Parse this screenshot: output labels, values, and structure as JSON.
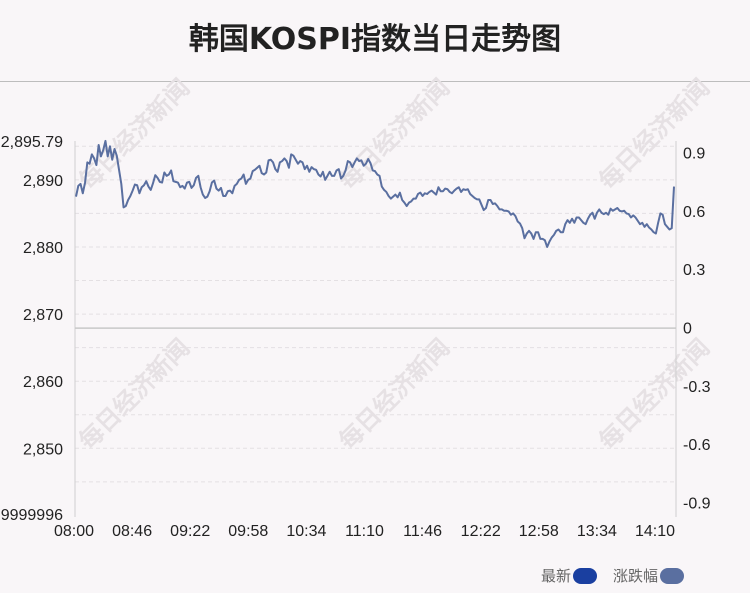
{
  "title": "韩国KOSPI指数当日走势图",
  "watermark": "每日经济新闻",
  "legend": {
    "items": [
      "最新",
      "涨跌幅"
    ],
    "colors": [
      "#1a3fa0",
      "#5a6fa0"
    ]
  },
  "chart_data": {
    "type": "line",
    "title": "韩国KOSPI指数当日走势图",
    "series": [
      {
        "name": "最新",
        "color": "#5a6fa0",
        "values": [
          2887.5,
          2889.1,
          2889.4,
          2888.0,
          2889.6,
          2892.6,
          2892.4,
          2893.8,
          2893.2,
          2892.2,
          2895.2,
          2893.5,
          2894.4,
          2895.8,
          2893.5,
          2895.0,
          2893.0,
          2894.6,
          2893.6,
          2891.5,
          2889.4,
          2885.9,
          2886.1,
          2887.0,
          2887.6,
          2888.4,
          2889.3,
          2889.2,
          2888.0,
          2888.9,
          2889.2,
          2889.8,
          2889.0,
          2888.5,
          2889.5,
          2890.7,
          2890.3,
          2889.7,
          2889.6,
          2891.1,
          2890.6,
          2890.8,
          2891.4,
          2889.8,
          2889.7,
          2889.6,
          2888.9,
          2889.1,
          2888.7,
          2889.6,
          2889.7,
          2888.8,
          2889.2,
          2890.3,
          2890.6,
          2888.9,
          2887.8,
          2887.3,
          2887.5,
          2888.3,
          2889.6,
          2889.9,
          2888.7,
          2888.4,
          2888.8,
          2887.6,
          2887.6,
          2888.3,
          2888.4,
          2888.0,
          2889.1,
          2889.4,
          2890.0,
          2890.2,
          2890.8,
          2889.4,
          2890.0,
          2890.2,
          2891.3,
          2891.5,
          2891.8,
          2892.1,
          2891.0,
          2890.8,
          2891.1,
          2892.9,
          2893.0,
          2892.6,
          2891.6,
          2891.2,
          2892.6,
          2892.8,
          2893.2,
          2892.8,
          2891.8,
          2893.8,
          2893.6,
          2893.0,
          2892.4,
          2892.8,
          2892.6,
          2891.6,
          2892.1,
          2891.2,
          2891.9,
          2891.6,
          2891.5,
          2890.8,
          2890.5,
          2891.2,
          2890.0,
          2890.6,
          2891.2,
          2890.6,
          2890.6,
          2891.4,
          2891.6,
          2890.2,
          2890.6,
          2891.4,
          2892.8,
          2892.6,
          2891.9,
          2892.6,
          2893.2,
          2892.8,
          2892.9,
          2892.1,
          2892.4,
          2893.1,
          2892.5,
          2891.4,
          2891.3,
          2890.8,
          2890.6,
          2889.0,
          2888.5,
          2888.2,
          2887.6,
          2887.2,
          2887.5,
          2887.8,
          2887.4,
          2888.1,
          2887.0,
          2886.6,
          2886.1,
          2886.6,
          2886.8,
          2887.2,
          2887.2,
          2887.9,
          2888.1,
          2887.6,
          2888.0,
          2887.9,
          2888.2,
          2888.4,
          2888.1,
          2887.8,
          2888.9,
          2888.3,
          2888.3,
          2888.7,
          2888.6,
          2888.2,
          2888.0,
          2888.4,
          2888.7,
          2888.9,
          2888.2,
          2888.6,
          2888.5,
          2888.6,
          2887.9,
          2887.6,
          2887.3,
          2887.1,
          2887.1,
          2886.3,
          2885.5,
          2885.8,
          2887.0,
          2887.0,
          2886.4,
          2886.5,
          2886.1,
          2885.6,
          2885.6,
          2885.4,
          2885.4,
          2885.3,
          2884.8,
          2885.0,
          2884.6,
          2883.8,
          2883.5,
          2882.8,
          2881.3,
          2882.0,
          2882.4,
          2882.0,
          2881.2,
          2882.2,
          2882.2,
          2881.2,
          2881.2,
          2881.0,
          2880.0,
          2880.8,
          2881.4,
          2881.8,
          2882.4,
          2882.6,
          2882.2,
          2882.2,
          2883.4,
          2884.0,
          2883.6,
          2884.2,
          2883.6,
          2884.4,
          2884.4,
          2884.0,
          2883.6,
          2883.4,
          2884.2,
          2884.8,
          2885.1,
          2884.2,
          2885.1,
          2885.6,
          2885.1,
          2884.9,
          2885.1,
          2884.8,
          2885.7,
          2885.4,
          2885.6,
          2885.8,
          2885.4,
          2885.3,
          2885.4,
          2885.0,
          2884.9,
          2884.4,
          2884.7,
          2884.4,
          2883.9,
          2883.4,
          2883.6,
          2883.0,
          2883.4,
          2882.9,
          2882.6,
          2882.2,
          2882.0,
          2883.6,
          2885.0,
          2884.8,
          2883.4,
          2883.0,
          2882.6,
          2882.8,
          2889.0
        ]
      }
    ],
    "left_axis": {
      "ticks": [
        2895.79,
        2890,
        2880,
        2870,
        2860,
        2850
      ],
      "tick_labels": [
        "2,895.79",
        "2,890",
        "2,880",
        "2,870",
        "2,860",
        "2,850"
      ],
      "bottom_label": "9999996",
      "ylim": [
        2840.21,
        2895.79
      ]
    },
    "right_axis": {
      "ticks": [
        0.9,
        0.6,
        0.3,
        0,
        -0.3,
        -0.6,
        -0.9
      ],
      "tick_labels": [
        "0.9",
        "0.6",
        "0.3",
        "0",
        "-0.3",
        "-0.6",
        "-0.9"
      ],
      "ylim": [
        -0.96,
        0.96
      ],
      "zero_line_value": 2867.91
    },
    "x_axis": {
      "tick_labels": [
        "08:00",
        "08:46",
        "09:22",
        "09:58",
        "10:34",
        "11:10",
        "11:46",
        "12:22",
        "12:58",
        "13:34",
        "14:10"
      ]
    },
    "grid": true
  }
}
